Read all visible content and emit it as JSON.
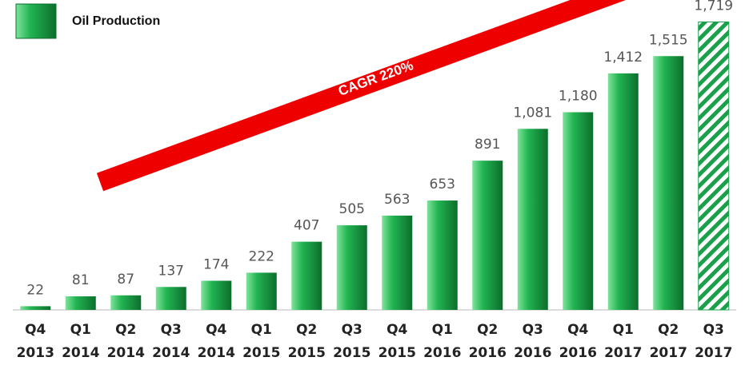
{
  "chart_data": {
    "type": "bar",
    "legend": "Oil Production",
    "annotation": "CAGR 220%",
    "categories": [
      [
        "Q4",
        "2013"
      ],
      [
        "Q1",
        "2014"
      ],
      [
        "Q2",
        "2014"
      ],
      [
        "Q3",
        "2014"
      ],
      [
        "Q4",
        "2014"
      ],
      [
        "Q1",
        "2015"
      ],
      [
        "Q2",
        "2015"
      ],
      [
        "Q3",
        "2015"
      ],
      [
        "Q4",
        "2015"
      ],
      [
        "Q1",
        "2016"
      ],
      [
        "Q2",
        "2016"
      ],
      [
        "Q3",
        "2016"
      ],
      [
        "Q4",
        "2016"
      ],
      [
        "Q1",
        "2017"
      ],
      [
        "Q2",
        "2017"
      ],
      [
        "Q3",
        "2017"
      ]
    ],
    "values": [
      22,
      81,
      87,
      137,
      174,
      222,
      407,
      505,
      563,
      653,
      891,
      1081,
      1180,
      1412,
      1515,
      1719
    ],
    "value_labels": [
      "22",
      "81",
      "87",
      "137",
      "174",
      "222",
      "407",
      "505",
      "563",
      "653",
      "891",
      "1,081",
      "1,180",
      "1,412",
      "1,515",
      "1,719"
    ],
    "hatched": [
      false,
      false,
      false,
      false,
      false,
      false,
      false,
      false,
      false,
      false,
      false,
      false,
      false,
      false,
      false,
      true
    ],
    "color": "#1aa04a",
    "ylim": [
      0,
      1850
    ]
  }
}
